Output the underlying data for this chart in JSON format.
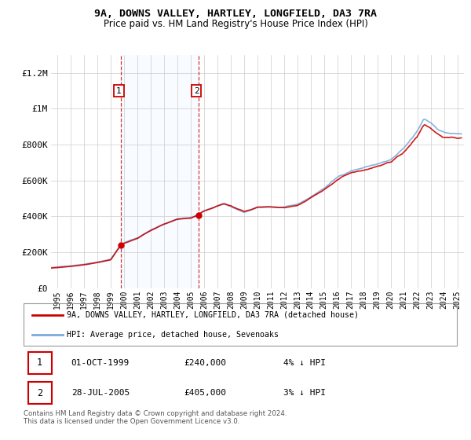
{
  "title": "9A, DOWNS VALLEY, HARTLEY, LONGFIELD, DA3 7RA",
  "subtitle": "Price paid vs. HM Land Registry's House Price Index (HPI)",
  "legend_label_red": "9A, DOWNS VALLEY, HARTLEY, LONGFIELD, DA3 7RA (detached house)",
  "legend_label_blue": "HPI: Average price, detached house, Sevenoaks",
  "footer": "Contains HM Land Registry data © Crown copyright and database right 2024.\nThis data is licensed under the Open Government Licence v3.0.",
  "annotation1_label": "1",
  "annotation1_date": "01-OCT-1999",
  "annotation1_price": "£240,000",
  "annotation1_hpi": "4% ↓ HPI",
  "annotation2_label": "2",
  "annotation2_date": "28-JUL-2005",
  "annotation2_price": "£405,000",
  "annotation2_hpi": "3% ↓ HPI",
  "point1_x": 1999.75,
  "point1_y": 240000,
  "point2_x": 2005.58,
  "point2_y": 405000,
  "red_color": "#cc0000",
  "blue_color": "#7aabdb",
  "highlight_color": "#ddeeff",
  "background_color": "#ffffff",
  "grid_color": "#cccccc",
  "ylim": [
    0,
    1300000
  ],
  "xlim_start": 1994.5,
  "xlim_end": 2025.5,
  "yticks": [
    0,
    200000,
    400000,
    600000,
    800000,
    1000000,
    1200000
  ],
  "ytick_labels": [
    "£0",
    "£200K",
    "£400K",
    "£600K",
    "£800K",
    "£1M",
    "£1.2M"
  ],
  "xticks": [
    1995,
    1996,
    1997,
    1998,
    1999,
    2000,
    2001,
    2002,
    2003,
    2004,
    2005,
    2006,
    2007,
    2008,
    2009,
    2010,
    2011,
    2012,
    2013,
    2014,
    2015,
    2016,
    2017,
    2018,
    2019,
    2020,
    2021,
    2022,
    2023,
    2024,
    2025
  ]
}
